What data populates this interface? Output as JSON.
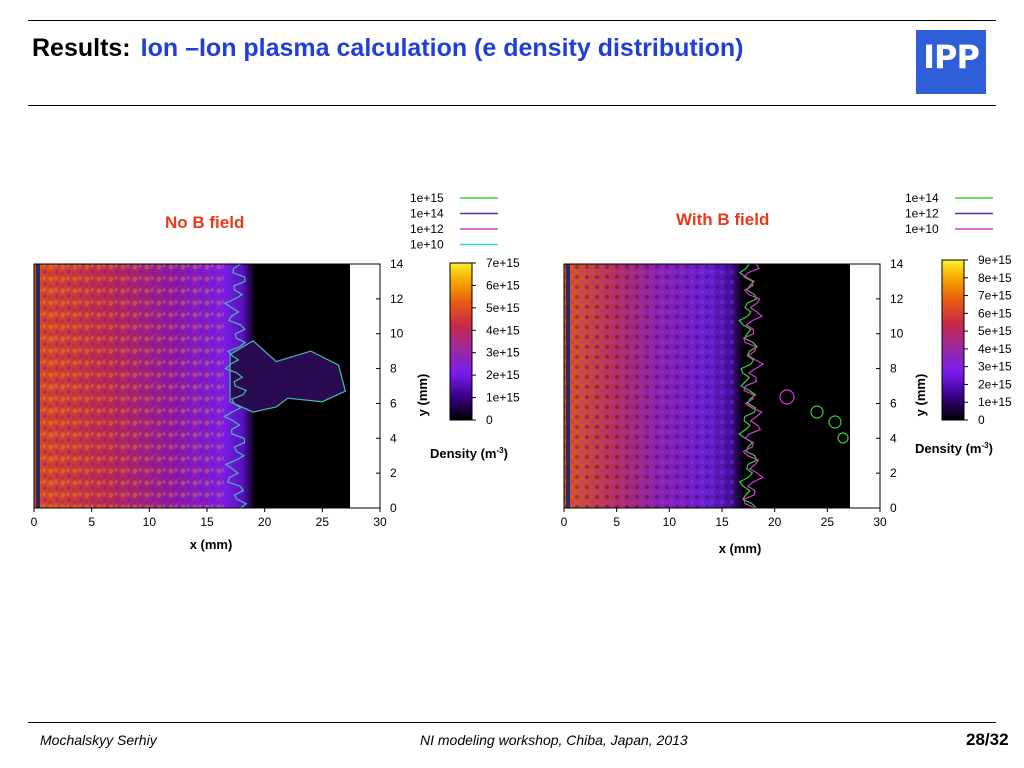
{
  "header": {
    "prefix": "Results:",
    "title": "Ion –Ion plasma calculation (e density distribution)",
    "logo_text": "IPP",
    "title_color": "#1f3fd6",
    "logo_color": "#2f5fd8"
  },
  "footer": {
    "author": "Mochalskyy Serhiy",
    "event": "NI modeling workshop,  Chiba, Japan, 2013",
    "page": "28/32"
  },
  "chart_data": [
    {
      "type": "heatmap",
      "title": "No B field",
      "xlabel": "x (mm)",
      "ylabel": "y (mm)",
      "xlim": [
        0,
        30
      ],
      "ylim": [
        0,
        14
      ],
      "xticks": [
        0,
        5,
        10,
        15,
        20,
        25,
        30
      ],
      "yticks": [
        0,
        2,
        4,
        6,
        8,
        10,
        12,
        14
      ],
      "plasma_region_x": [
        0,
        27.5
      ],
      "colorbar": {
        "label": "Density (m",
        "label_exp": "-3",
        "label_close": ")",
        "min": 0,
        "max": 7000000000000000.0,
        "ticks": [
          "7e+15",
          "6e+15",
          "5e+15",
          "4e+15",
          "3e+15",
          "2e+15",
          "1e+15",
          "0"
        ]
      },
      "contour_legend": [
        {
          "label": "1e+15",
          "color": "#3dcc3d"
        },
        {
          "label": "1e+14",
          "color": "#3a3ab8"
        },
        {
          "label": "1e+12",
          "color": "#d23cd2"
        },
        {
          "label": "1e+10",
          "color": "#3ad8d8"
        }
      ],
      "front_x_mm": 17.5,
      "blob": {
        "x_range": [
          17,
          27
        ],
        "y_range": [
          5.5,
          9
        ]
      }
    },
    {
      "type": "heatmap",
      "title": "With B field",
      "xlabel": "x (mm)",
      "ylabel": "y (mm)",
      "xlim": [
        0,
        30
      ],
      "ylim": [
        0,
        14
      ],
      "xticks": [
        0,
        5,
        10,
        15,
        20,
        25,
        30
      ],
      "yticks": [
        0,
        2,
        4,
        6,
        8,
        10,
        12,
        14
      ],
      "plasma_region_x": [
        0,
        27.5
      ],
      "colorbar": {
        "label": "Density (m",
        "label_exp": "-3",
        "label_close": ")",
        "min": 0,
        "max": 9000000000000000.0,
        "ticks": [
          "9e+15",
          "8e+15",
          "7e+15",
          "6e+15",
          "5e+15",
          "4e+15",
          "3e+15",
          "2e+15",
          "1e+15",
          "0"
        ]
      },
      "contour_legend": [
        {
          "label": "1e+14",
          "color": "#3dcc3d"
        },
        {
          "label": "1e+12",
          "color": "#3a3ab8"
        },
        {
          "label": "1e+10",
          "color": "#d23cd2"
        }
      ],
      "front_x_mm": 17.5,
      "blob": null
    }
  ]
}
